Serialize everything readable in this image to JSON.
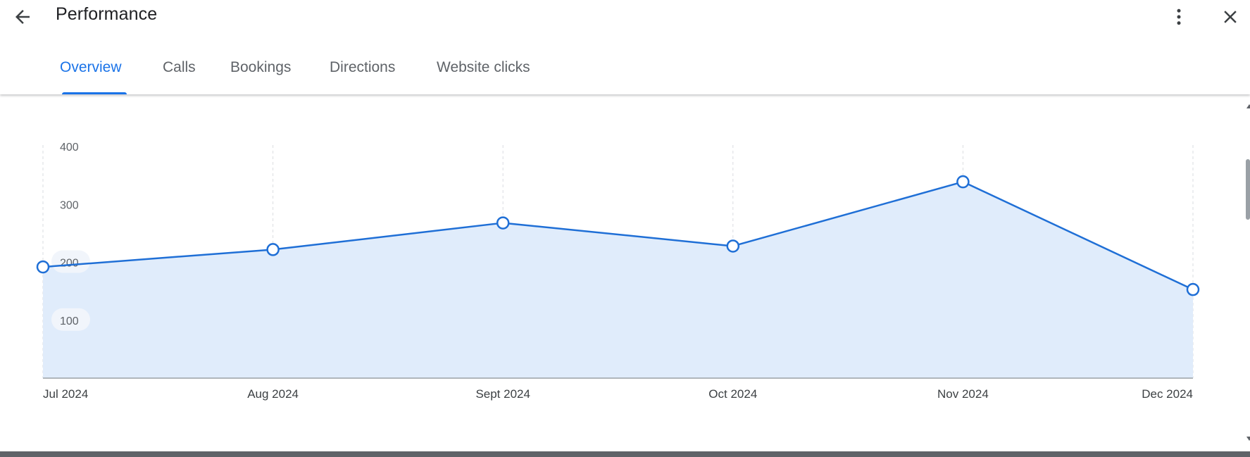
{
  "header": {
    "title": "Performance",
    "back_icon": "arrow-back-icon",
    "more_icon": "more-vert-icon",
    "close_icon": "close-icon"
  },
  "tabs": [
    {
      "label": "Overview",
      "active": true
    },
    {
      "label": "Calls",
      "active": false
    },
    {
      "label": "Bookings",
      "active": false
    },
    {
      "label": "Directions",
      "active": false
    },
    {
      "label": "Website clicks",
      "active": false
    }
  ],
  "colors": {
    "accent": "#1a73e8",
    "line": "#1f6fd6",
    "fill": "#e0ecfb",
    "grid": "#dadce0",
    "text": "#3c4043"
  },
  "chart_data": {
    "type": "area",
    "categories": [
      "Jul 2024",
      "Aug 2024",
      "Sept 2024",
      "Oct 2024",
      "Nov 2024",
      "Dec 2024"
    ],
    "values": [
      192,
      222,
      268,
      228,
      339,
      153
    ],
    "y_ticks": [
      100,
      200,
      300,
      400
    ],
    "ylim": [
      0,
      400
    ],
    "grid": "vertical dashed"
  }
}
